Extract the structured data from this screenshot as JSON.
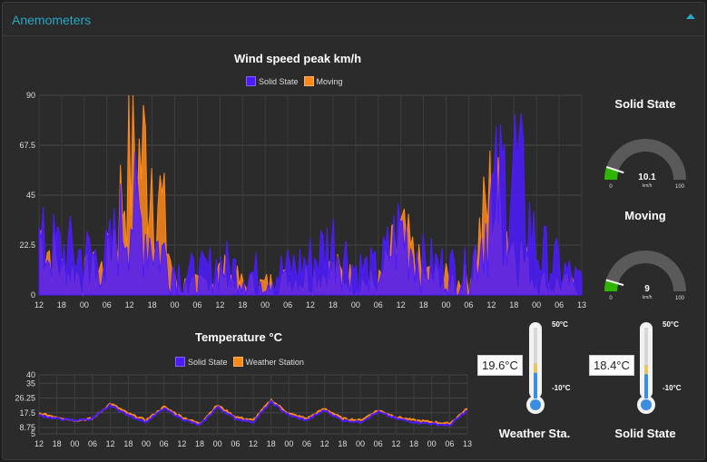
{
  "panel": {
    "title": "Anemometers"
  },
  "wind_chart": {
    "title": "Wind speed peak km/h",
    "legend": [
      {
        "label": "Solid State",
        "color": "#4c1bff"
      },
      {
        "label": "Moving",
        "color": "#ff8a1a"
      }
    ],
    "y_ticks": [
      "90",
      "67.5",
      "45",
      "22.5",
      "0"
    ],
    "x_ticks": [
      "12",
      "18",
      "00",
      "06",
      "12",
      "18",
      "00",
      "06",
      "12",
      "18",
      "00",
      "06",
      "12",
      "18",
      "00",
      "06",
      "12",
      "18",
      "00",
      "06",
      "12",
      "18",
      "00",
      "06",
      "13"
    ]
  },
  "temp_chart": {
    "title": "Temperature °C",
    "legend": [
      {
        "label": "Solid State",
        "color": "#4c1bff"
      },
      {
        "label": "Weather Station",
        "color": "#ff8a1a"
      }
    ],
    "y_ticks": [
      "40",
      "35",
      "26.25",
      "17.5",
      "8.75",
      "5"
    ],
    "x_ticks": [
      "12",
      "18",
      "00",
      "06",
      "12",
      "18",
      "00",
      "06",
      "12",
      "18",
      "00",
      "06",
      "12",
      "18",
      "00",
      "06",
      "12",
      "18",
      "00",
      "06",
      "12",
      "18",
      "00",
      "06",
      "13"
    ]
  },
  "gauges": [
    {
      "title": "Solid State",
      "value": "10.1",
      "unit": "km/h",
      "min": "0",
      "max": "100",
      "level": 0.101,
      "color": "#2fb500"
    },
    {
      "title": "Moving",
      "value": "9",
      "unit": "km/h",
      "min": "0",
      "max": "100",
      "level": 0.09,
      "color": "#2fb500"
    }
  ],
  "thermometers": [
    {
      "label": "Weather Sta.",
      "value": "19.6°C",
      "max": "50°C",
      "min": "-10°C",
      "level": 0.49
    },
    {
      "label": "Solid State",
      "value": "18.4°C",
      "max": "50°C",
      "min": "-10°C",
      "level": 0.47
    }
  ],
  "chart_data": [
    {
      "type": "line",
      "title": "Wind speed peak km/h",
      "xlabel": "",
      "ylabel": "",
      "ylim": [
        0,
        90
      ],
      "x": [
        "12",
        "18",
        "00",
        "06",
        "12",
        "18",
        "00",
        "06",
        "12",
        "18",
        "00",
        "06",
        "12",
        "18",
        "00",
        "06",
        "12",
        "18",
        "00",
        "06",
        "12",
        "18",
        "00",
        "06",
        "13"
      ],
      "series": [
        {
          "name": "Solid State",
          "values": [
            22,
            20,
            18,
            16,
            40,
            25,
            12,
            8,
            14,
            10,
            9,
            11,
            15,
            24,
            12,
            10,
            30,
            14,
            12,
            10,
            40,
            60,
            20,
            12,
            5
          ]
        },
        {
          "name": "Moving",
          "values": [
            28,
            10,
            8,
            12,
            60,
            62,
            5,
            3,
            10,
            4,
            4,
            6,
            8,
            10,
            6,
            4,
            25,
            8,
            6,
            6,
            45,
            22,
            5,
            4,
            2
          ]
        }
      ]
    },
    {
      "type": "line",
      "title": "Temperature °C",
      "xlabel": "",
      "ylabel": "",
      "ylim": [
        5,
        40
      ],
      "x": [
        "12",
        "18",
        "00",
        "06",
        "12",
        "18",
        "00",
        "06",
        "12",
        "18",
        "00",
        "06",
        "12",
        "18",
        "00",
        "06",
        "12",
        "18",
        "00",
        "06",
        "12",
        "18",
        "00",
        "06",
        "13"
      ],
      "series": [
        {
          "name": "Solid State",
          "values": [
            16,
            14,
            13,
            14,
            22,
            16,
            12,
            20,
            14,
            10,
            21,
            14,
            12,
            24,
            16,
            13,
            19,
            13,
            12,
            18,
            14,
            12,
            11,
            10,
            19
          ]
        },
        {
          "name": "Weather Station",
          "values": [
            17,
            15,
            13,
            14,
            23,
            17,
            13,
            21,
            15,
            11,
            22,
            15,
            13,
            25,
            17,
            14,
            20,
            14,
            13,
            19,
            15,
            13,
            12,
            11,
            20
          ]
        }
      ]
    }
  ]
}
